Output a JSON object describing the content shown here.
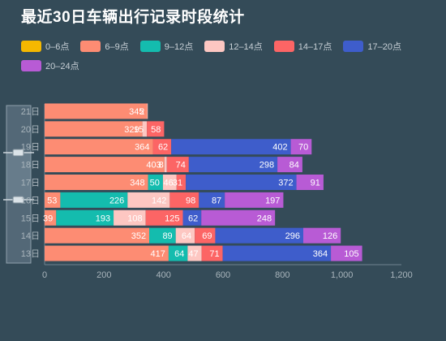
{
  "title": "最近30日车辆出行记录时段统计",
  "legend": [
    {
      "name": "0–6点",
      "color": "#f5b800"
    },
    {
      "name": "6–9点",
      "color": "#fd8c73"
    },
    {
      "name": "9–12点",
      "color": "#14bcae"
    },
    {
      "name": "12–14点",
      "color": "#fdc7c2"
    },
    {
      "name": "14–17点",
      "color": "#fc6565"
    },
    {
      "name": "17–20点",
      "color": "#3e5dcb"
    },
    {
      "name": "20–24点",
      "color": "#b85bd5"
    }
  ],
  "chart_data": {
    "type": "bar",
    "orientation": "horizontal",
    "stacked": true,
    "title": "最近30日车辆出行记录时段统计",
    "categories": [
      "13日",
      "14日",
      "15日",
      "16日",
      "17日",
      "18日",
      "19日",
      "20日",
      "21日"
    ],
    "xlim": [
      0,
      1200
    ],
    "x_ticks": [
      "0",
      "200",
      "400",
      "600",
      "800",
      "1,000",
      "1,200"
    ],
    "series": [
      {
        "name": "0–6点",
        "color": "#f5b800",
        "values": [
          0,
          0,
          0,
          0,
          0,
          0,
          0,
          0,
          0
        ]
      },
      {
        "name": "6–9点",
        "color": "#fd8c73",
        "values": [
          417,
          352,
          39,
          53,
          348,
          403,
          364,
          329,
          345
        ]
      },
      {
        "name": "9–12点",
        "color": "#14bcae",
        "values": [
          64,
          89,
          193,
          226,
          50,
          0,
          0,
          0,
          0
        ]
      },
      {
        "name": "12–14点",
        "color": "#fdc7c2",
        "values": [
          47,
          64,
          108,
          142,
          46,
          8,
          0,
          15,
          2
        ]
      },
      {
        "name": "14–17点",
        "color": "#fc6565",
        "values": [
          71,
          69,
          125,
          98,
          31,
          74,
          62,
          58,
          0
        ]
      },
      {
        "name": "17–20点",
        "color": "#3e5dcb",
        "values": [
          364,
          296,
          62,
          87,
          372,
          298,
          402,
          0,
          0
        ]
      },
      {
        "name": "20–24点",
        "color": "#b85bd5",
        "values": [
          105,
          126,
          248,
          197,
          91,
          84,
          70,
          0,
          0
        ]
      }
    ],
    "data_labels": [
      [
        "417",
        "64",
        "47",
        "71",
        "364",
        "105"
      ],
      [
        "352",
        "89",
        "64",
        "69",
        "296",
        "126"
      ],
      [
        "39",
        "193",
        "108",
        "125",
        "62",
        "248"
      ],
      [
        "53",
        "226",
        "142",
        "98",
        "87",
        "197"
      ],
      [
        "348",
        "50",
        "46",
        "31",
        "372",
        "91"
      ],
      [
        "403",
        "8",
        "74",
        "298",
        "84"
      ],
      [
        "364",
        "62",
        "402",
        "70"
      ],
      [
        "329",
        "15",
        "58"
      ],
      [
        "345",
        "2"
      ]
    ],
    "grid": false,
    "legend_position": "top-left",
    "data_zoom": "left-vertical slider"
  }
}
